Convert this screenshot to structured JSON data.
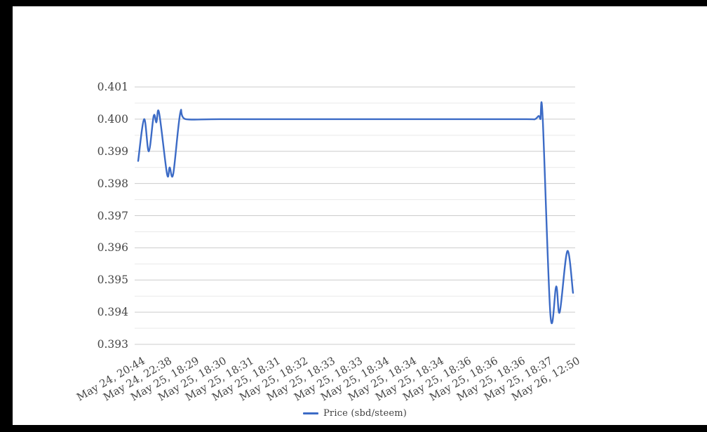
{
  "page": {
    "background": "#ffffff",
    "frame_color": "#000000"
  },
  "chart_data": {
    "type": "line",
    "title": "",
    "xlabel": "",
    "ylabel": "",
    "grid": true,
    "legend_position": "bottom",
    "x_tick_labels": [
      "May 24, 20:44",
      "May 24, 22:38",
      "May 25, 18:29",
      "May 25, 18:30",
      "May 25, 18:31",
      "May 25, 18:31",
      "May 25, 18:32",
      "May 25, 18:33",
      "May 25, 18:33",
      "May 25, 18:34",
      "May 25, 18:34",
      "May 25, 18:34",
      "May 25, 18:36",
      "May 25, 18:36",
      "May 25, 18:36",
      "May 25, 18:37",
      "May 26, 12:50"
    ],
    "y_tick_labels": [
      "0.401",
      "0.400",
      "0.399",
      "0.398",
      "0.397",
      "0.396",
      "0.395",
      "0.394",
      "0.393"
    ],
    "ylim": [
      0.393,
      0.401
    ],
    "xlim_index": [
      0,
      16
    ],
    "colors": {
      "line": "#3c6bc6",
      "major_grid": "#cccccc",
      "minor_grid": "#e9e9e9",
      "axis_text": "#454545"
    },
    "series": [
      {
        "name": "Price (sbd/steem)",
        "color": "#3c6bc6",
        "points": [
          [
            0.0,
            0.3987
          ],
          [
            0.22,
            0.4
          ],
          [
            0.39,
            0.399
          ],
          [
            0.57,
            0.4001
          ],
          [
            0.67,
            0.3999
          ],
          [
            0.77,
            0.4002
          ],
          [
            1.06,
            0.3983
          ],
          [
            1.16,
            0.3985
          ],
          [
            1.29,
            0.3983
          ],
          [
            1.55,
            0.4002
          ],
          [
            1.75,
            0.4
          ],
          [
            3.0,
            0.4
          ],
          [
            6.0,
            0.4
          ],
          [
            9.0,
            0.4
          ],
          [
            12.0,
            0.4
          ],
          [
            14.3,
            0.4
          ],
          [
            14.6,
            0.4
          ],
          [
            14.74,
            0.4001
          ],
          [
            14.8,
            0.4
          ],
          [
            14.88,
            0.4001
          ],
          [
            15.17,
            0.3939
          ],
          [
            15.38,
            0.3948
          ],
          [
            15.51,
            0.394
          ],
          [
            15.79,
            0.3959
          ],
          [
            16.0,
            0.3946
          ]
        ]
      }
    ]
  }
}
